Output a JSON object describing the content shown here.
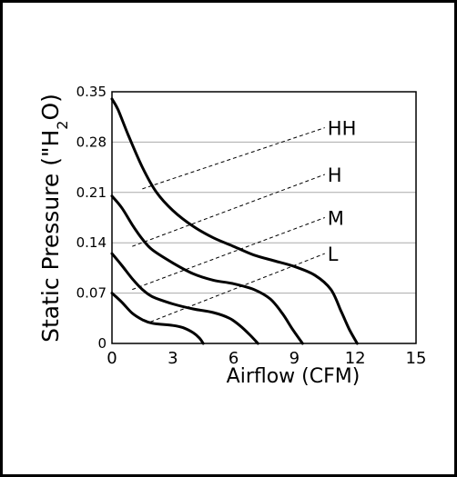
{
  "chart_data": {
    "type": "line",
    "xlabel": "Airflow (CFM)",
    "ylabel_main": "Static Pressure (",
    "ylabel_quote": "\"H",
    "ylabel_sub": "2",
    "ylabel_tail": "O)",
    "xlim": [
      0,
      15
    ],
    "ylim": [
      0,
      0.35
    ],
    "x_ticks": [
      0,
      3,
      6,
      9,
      12,
      15
    ],
    "y_ticks": [
      0,
      0.07,
      0.14,
      0.21,
      0.28,
      0.35
    ],
    "x_tick_labels": [
      "0",
      "3",
      "6",
      "9",
      "12",
      "15"
    ],
    "y_tick_labels": [
      "0",
      "0.07",
      "0.14",
      "0.21",
      "0.28",
      "0.35"
    ],
    "grid": "horizontal",
    "series": [
      {
        "name": "HH",
        "points": [
          [
            0,
            0.34
          ],
          [
            0.3,
            0.325
          ],
          [
            0.8,
            0.29
          ],
          [
            1.5,
            0.245
          ],
          [
            2.2,
            0.21
          ],
          [
            3,
            0.185
          ],
          [
            4,
            0.163
          ],
          [
            5,
            0.147
          ],
          [
            6,
            0.135
          ],
          [
            7,
            0.123
          ],
          [
            8,
            0.115
          ],
          [
            9,
            0.107
          ],
          [
            10,
            0.095
          ],
          [
            10.8,
            0.075
          ],
          [
            11.3,
            0.045
          ],
          [
            11.7,
            0.02
          ],
          [
            12.1,
            0
          ]
        ]
      },
      {
        "name": "H",
        "points": [
          [
            0,
            0.205
          ],
          [
            0.5,
            0.188
          ],
          [
            1,
            0.165
          ],
          [
            1.5,
            0.145
          ],
          [
            2,
            0.13
          ],
          [
            3,
            0.112
          ],
          [
            4,
            0.097
          ],
          [
            5,
            0.088
          ],
          [
            6,
            0.083
          ],
          [
            7,
            0.075
          ],
          [
            7.8,
            0.062
          ],
          [
            8.4,
            0.042
          ],
          [
            8.9,
            0.02
          ],
          [
            9.4,
            0
          ]
        ]
      },
      {
        "name": "M",
        "points": [
          [
            0,
            0.125
          ],
          [
            0.5,
            0.108
          ],
          [
            1,
            0.09
          ],
          [
            1.5,
            0.075
          ],
          [
            2,
            0.065
          ],
          [
            3,
            0.055
          ],
          [
            4,
            0.048
          ],
          [
            5,
            0.043
          ],
          [
            5.8,
            0.035
          ],
          [
            6.3,
            0.025
          ],
          [
            6.8,
            0.012
          ],
          [
            7.2,
            0
          ]
        ]
      },
      {
        "name": "L",
        "points": [
          [
            0,
            0.07
          ],
          [
            0.5,
            0.057
          ],
          [
            1,
            0.042
          ],
          [
            1.5,
            0.033
          ],
          [
            2,
            0.028
          ],
          [
            3,
            0.025
          ],
          [
            3.5,
            0.022
          ],
          [
            4,
            0.015
          ],
          [
            4.3,
            0.008
          ],
          [
            4.5,
            0
          ]
        ]
      }
    ],
    "leaders": [
      {
        "label": "HH",
        "from": [
          1.5,
          0.215
        ],
        "to": [
          10.5,
          0.3
        ]
      },
      {
        "label": "H",
        "from": [
          1.0,
          0.135
        ],
        "to": [
          10.5,
          0.235
        ]
      },
      {
        "label": "M",
        "from": [
          1.0,
          0.075
        ],
        "to": [
          10.5,
          0.175
        ]
      },
      {
        "label": "L",
        "from": [
          1.9,
          0.03
        ],
        "to": [
          10.5,
          0.125
        ]
      }
    ]
  }
}
